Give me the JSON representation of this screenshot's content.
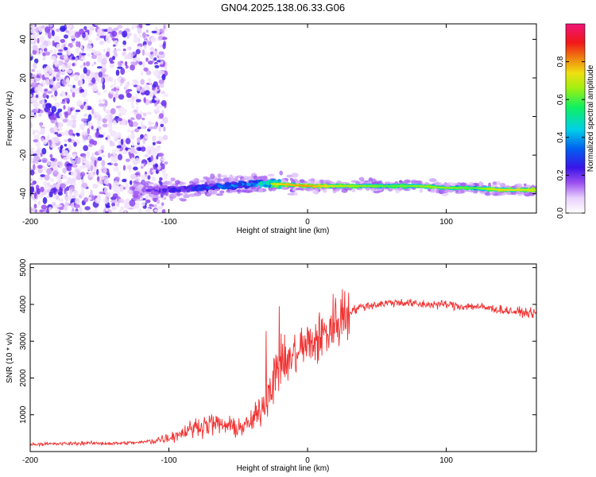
{
  "title": "GN04.2025.138.06.33.G06",
  "chart_data": [
    {
      "type": "heatmap",
      "xlabel": "Height of straight line (km)",
      "ylabel": "Frequency (Hz)",
      "xlim": [
        -200,
        165
      ],
      "ylim": [
        -50,
        48
      ],
      "xticks": [
        -200,
        -100,
        0,
        100
      ],
      "yticks": [
        -40,
        -20,
        0,
        20,
        40
      ],
      "colorbar": {
        "label": "Normalized spectral amplitude",
        "range": [
          0,
          1
        ],
        "ticks": [
          0.0,
          0.2,
          0.4,
          0.6,
          0.8
        ],
        "colors": [
          "#ffffff",
          "#b86cf0",
          "#6a1ee8",
          "#1a2cf0",
          "#00c0f0",
          "#10f060",
          "#f0f010",
          "#f07010",
          "#f01010",
          "#f0146c"
        ]
      },
      "series": [
        {
          "x": [
            -200,
            -150,
            -120,
            -100,
            -80,
            -60,
            -40,
            -20,
            0,
            20,
            40,
            60,
            80,
            100,
            120,
            140,
            165
          ],
          "y": [
            -38,
            -38,
            -38,
            -38,
            -37,
            -36,
            -35,
            -35,
            -36,
            -36,
            -36,
            -36,
            -36,
            -37,
            -37,
            -38,
            -38
          ],
          "amplitude": [
            0.05,
            0.1,
            0.2,
            0.3,
            0.35,
            0.4,
            0.45,
            0.75,
            0.8,
            0.7,
            0.65,
            0.6,
            0.65,
            0.65,
            0.6,
            0.75,
            0.7
          ]
        }
      ]
    },
    {
      "type": "line",
      "xlabel": "Height of straight line (km)",
      "ylabel": "SNR (10 * v/v)",
      "xlim": [
        -200,
        165
      ],
      "ylim": [
        0,
        5100
      ],
      "xticks": [
        -200,
        -100,
        0,
        100
      ],
      "yticks": [
        1000,
        2000,
        3000,
        4000,
        5000
      ],
      "color": "#f03030",
      "series": [
        {
          "x": [
            -200,
            -180,
            -160,
            -140,
            -120,
            -110,
            -100,
            -95,
            -90,
            -85,
            -80,
            -75,
            -70,
            -65,
            -60,
            -55,
            -50,
            -45,
            -40,
            -35,
            -30,
            -25,
            -22,
            -20,
            -15,
            -10,
            -5,
            0,
            5,
            10,
            15,
            20,
            25,
            30,
            40,
            50,
            60,
            70,
            80,
            90,
            100,
            110,
            120,
            130,
            140,
            150,
            165
          ],
          "y": [
            200,
            210,
            230,
            220,
            250,
            300,
            380,
            450,
            520,
            600,
            680,
            720,
            760,
            740,
            700,
            680,
            650,
            700,
            800,
            1100,
            1500,
            1900,
            2200,
            2300,
            2400,
            2600,
            2800,
            2900,
            3000,
            3100,
            3300,
            3500,
            3700,
            3800,
            3950,
            4000,
            4050,
            4050,
            4000,
            4000,
            4000,
            3950,
            3950,
            3900,
            3850,
            3800,
            3750
          ]
        }
      ]
    }
  ]
}
